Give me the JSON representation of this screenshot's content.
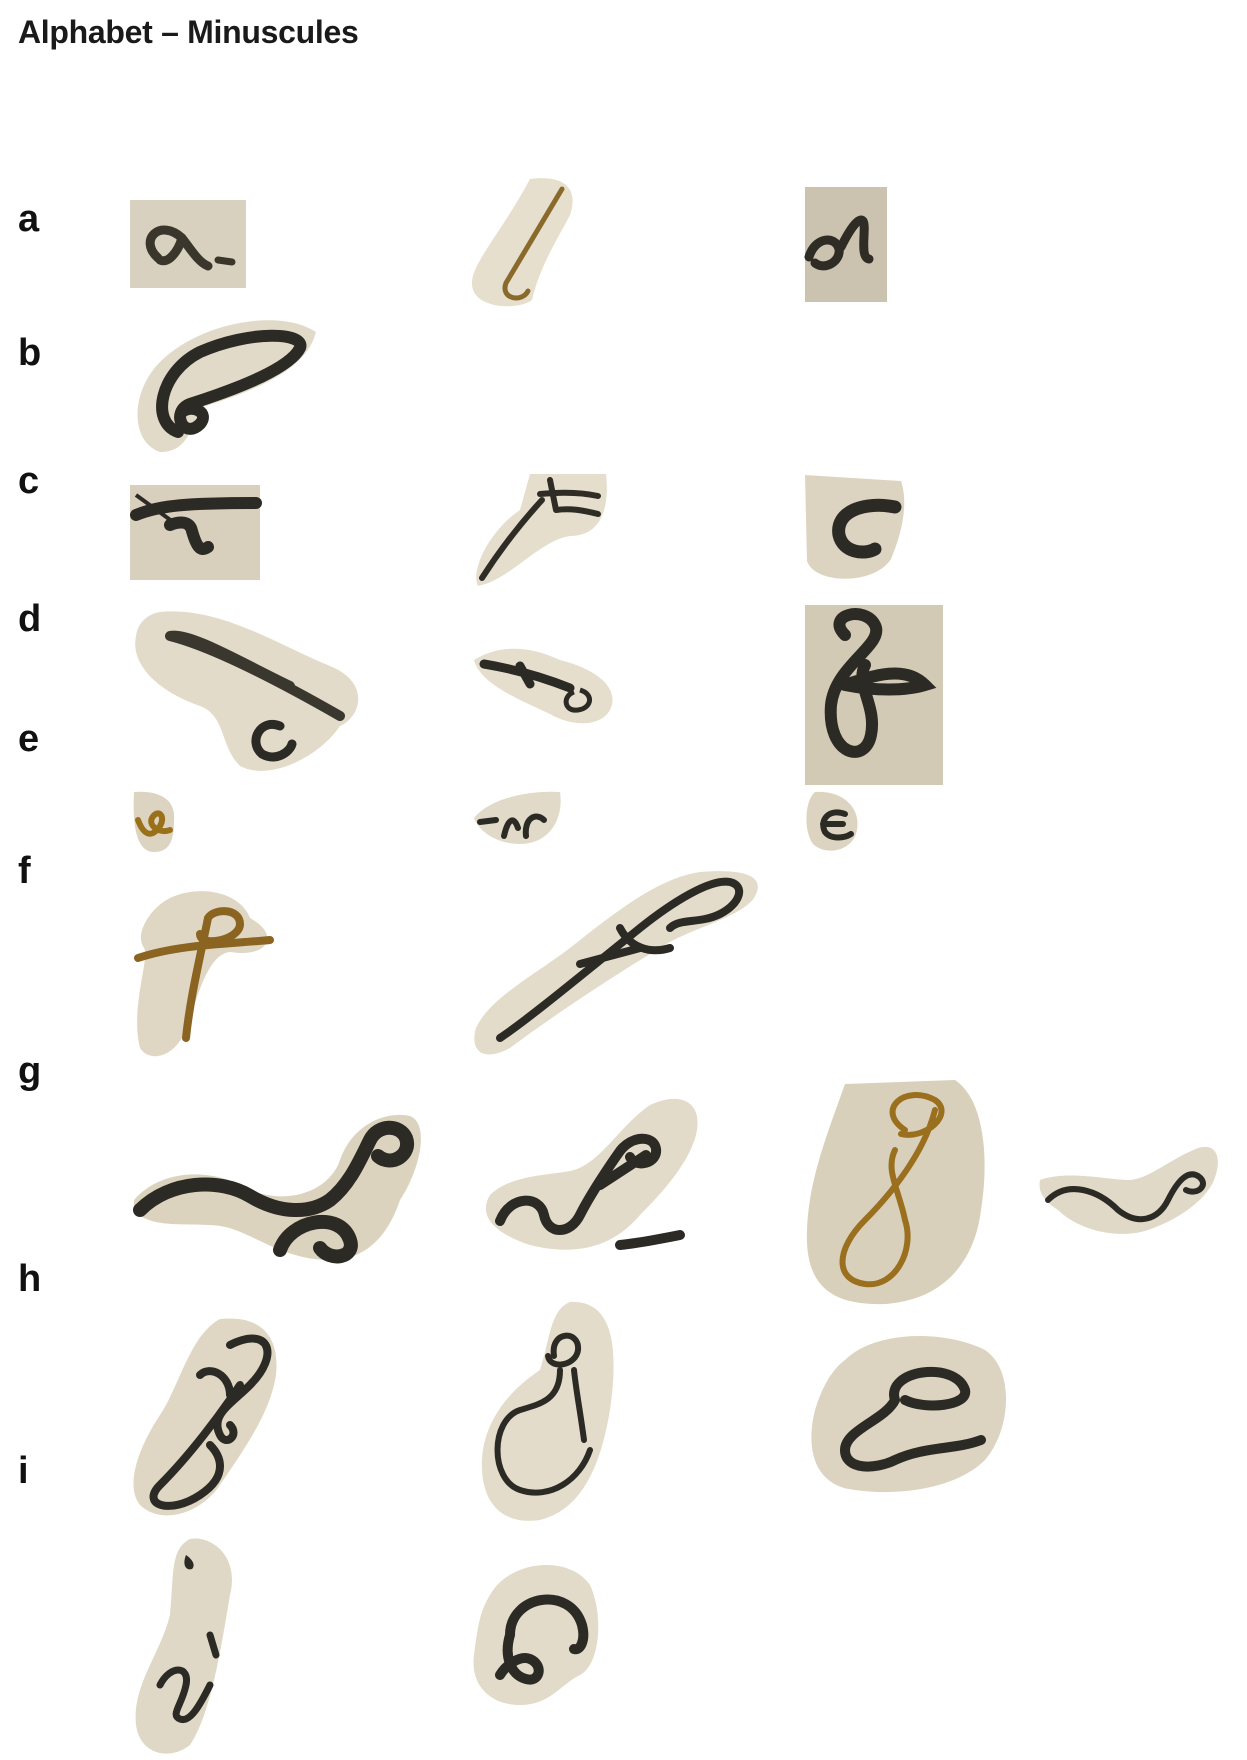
{
  "page": {
    "title": "Alphabet – Minuscules"
  },
  "rows": [
    {
      "letter": "a",
      "specimens": 3
    },
    {
      "letter": "b",
      "specimens": 1
    },
    {
      "letter": "c",
      "specimens": 3
    },
    {
      "letter": "d",
      "specimens": 3
    },
    {
      "letter": "e",
      "specimens": 3
    },
    {
      "letter": "f",
      "specimens": 2
    },
    {
      "letter": "g",
      "specimens": 4
    },
    {
      "letter": "h",
      "specimens": 3
    },
    {
      "letter": "i",
      "specimens": 2
    }
  ],
  "colors": {
    "parchment": "#e4dccb",
    "parchment_dark": "#cfc6b2",
    "ink_black": "#2e2b24",
    "ink_brown": "#8a6420"
  }
}
